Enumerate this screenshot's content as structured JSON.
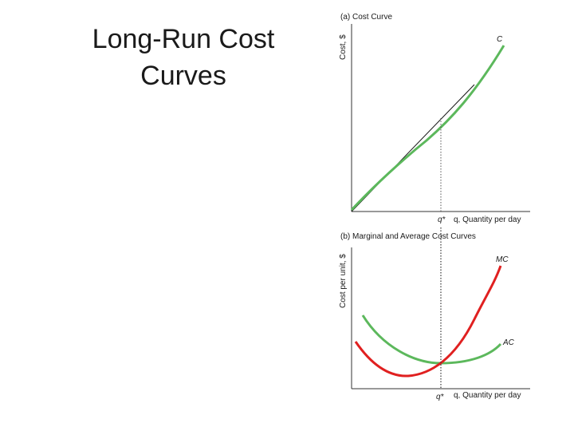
{
  "slide": {
    "title_line1": "Long-Run Cost",
    "title_line2": "Curves"
  },
  "panel_a": {
    "title": "(a) Cost Curve",
    "ylabel": "Cost, $",
    "curve_label": "C",
    "q_star_label": "q*",
    "xlabel": "q, Quantity per day"
  },
  "panel_b": {
    "title": "(b) Marginal and Average Cost Curves",
    "ylabel": "Cost per unit, $",
    "mc_label": "MC",
    "ac_label": "AC",
    "q_star_label": "q*",
    "xlabel": "q, Quantity per day"
  },
  "colors": {
    "cost_curve": "#5cb85c",
    "mc_curve": "#e02020",
    "ac_curve": "#5cb85c",
    "axis": "#333333"
  }
}
